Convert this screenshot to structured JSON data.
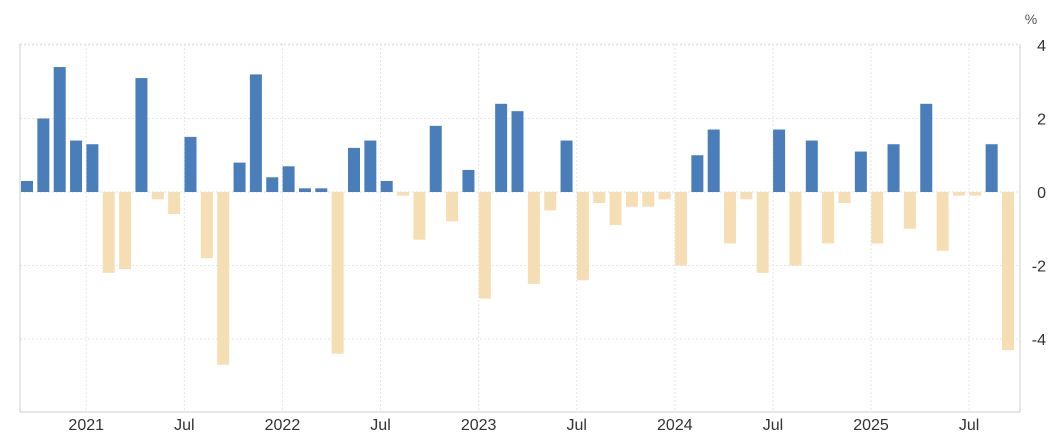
{
  "chart_data": {
    "type": "bar",
    "unit_label": "%",
    "ylim": [
      -5,
      4
    ],
    "y_ticks": [
      "4",
      "2",
      "0",
      "-2",
      "-4"
    ],
    "y_tick_values": [
      4,
      2,
      0,
      -2,
      -4
    ],
    "x_ticks": [
      {
        "label": "2021",
        "period": "2021-01"
      },
      {
        "label": "Jul",
        "period": "2021-07"
      },
      {
        "label": "2022",
        "period": "2022-01"
      },
      {
        "label": "Jul",
        "period": "2022-07"
      },
      {
        "label": "2023",
        "period": "2023-01"
      },
      {
        "label": "Jul",
        "period": "2023-07"
      },
      {
        "label": "2024",
        "period": "2024-01"
      },
      {
        "label": "Jul",
        "period": "2024-07"
      },
      {
        "label": "2025",
        "period": "2025-01"
      },
      {
        "label": "Jul",
        "period": "2025-07"
      }
    ],
    "grid": true,
    "colors": {
      "positive": "#4a7ebb",
      "negative": "#f5deb3",
      "grid": "#e6e6e6",
      "axis": "#cccccc"
    },
    "series": [
      {
        "categories": [
          "2020-09",
          "2020-10",
          "2020-11",
          "2020-12",
          "2021-01",
          "2021-02",
          "2021-03",
          "2021-04",
          "2021-05",
          "2021-06",
          "2021-07",
          "2021-08",
          "2021-09",
          "2021-10",
          "2021-11",
          "2021-12",
          "2022-01",
          "2022-02",
          "2022-03",
          "2022-04",
          "2022-05",
          "2022-06",
          "2022-07",
          "2022-08",
          "2022-09",
          "2022-10",
          "2022-11",
          "2022-12",
          "2023-01",
          "2023-02",
          "2023-03",
          "2023-04",
          "2023-05",
          "2023-06",
          "2023-07",
          "2023-08",
          "2023-09",
          "2023-10",
          "2023-11",
          "2023-12",
          "2024-01",
          "2024-02",
          "2024-03",
          "2024-04",
          "2024-05",
          "2024-06",
          "2024-07",
          "2024-08",
          "2024-09",
          "2024-10",
          "2024-11",
          "2024-12",
          "2025-01",
          "2025-02",
          "2025-03",
          "2025-04",
          "2025-05",
          "2025-06",
          "2025-07",
          "2025-08"
        ],
        "values": [
          0.3,
          2.0,
          3.4,
          1.4,
          1.3,
          -2.2,
          -2.1,
          3.1,
          -0.2,
          -0.6,
          1.5,
          -1.8,
          -4.7,
          0.8,
          3.2,
          0.4,
          0.7,
          0.1,
          0.1,
          -4.4,
          1.2,
          1.4,
          0.3,
          -0.1,
          -1.3,
          1.8,
          -0.8,
          0.6,
          -2.9,
          2.4,
          2.2,
          -2.5,
          -0.5,
          1.4,
          -2.4,
          -0.3,
          -0.9,
          -0.4,
          -0.4,
          -0.2,
          -2.0,
          1.0,
          1.7,
          -1.4,
          -0.2,
          -2.2,
          1.7,
          -2.0,
          1.4,
          -1.4,
          -0.3,
          1.1,
          -1.4,
          1.3,
          -1.0,
          2.4,
          -1.6,
          -0.1,
          -0.1,
          1.3
        ]
      }
    ],
    "extra_last": {
      "category": "2025-09",
      "value": -4.3
    }
  }
}
